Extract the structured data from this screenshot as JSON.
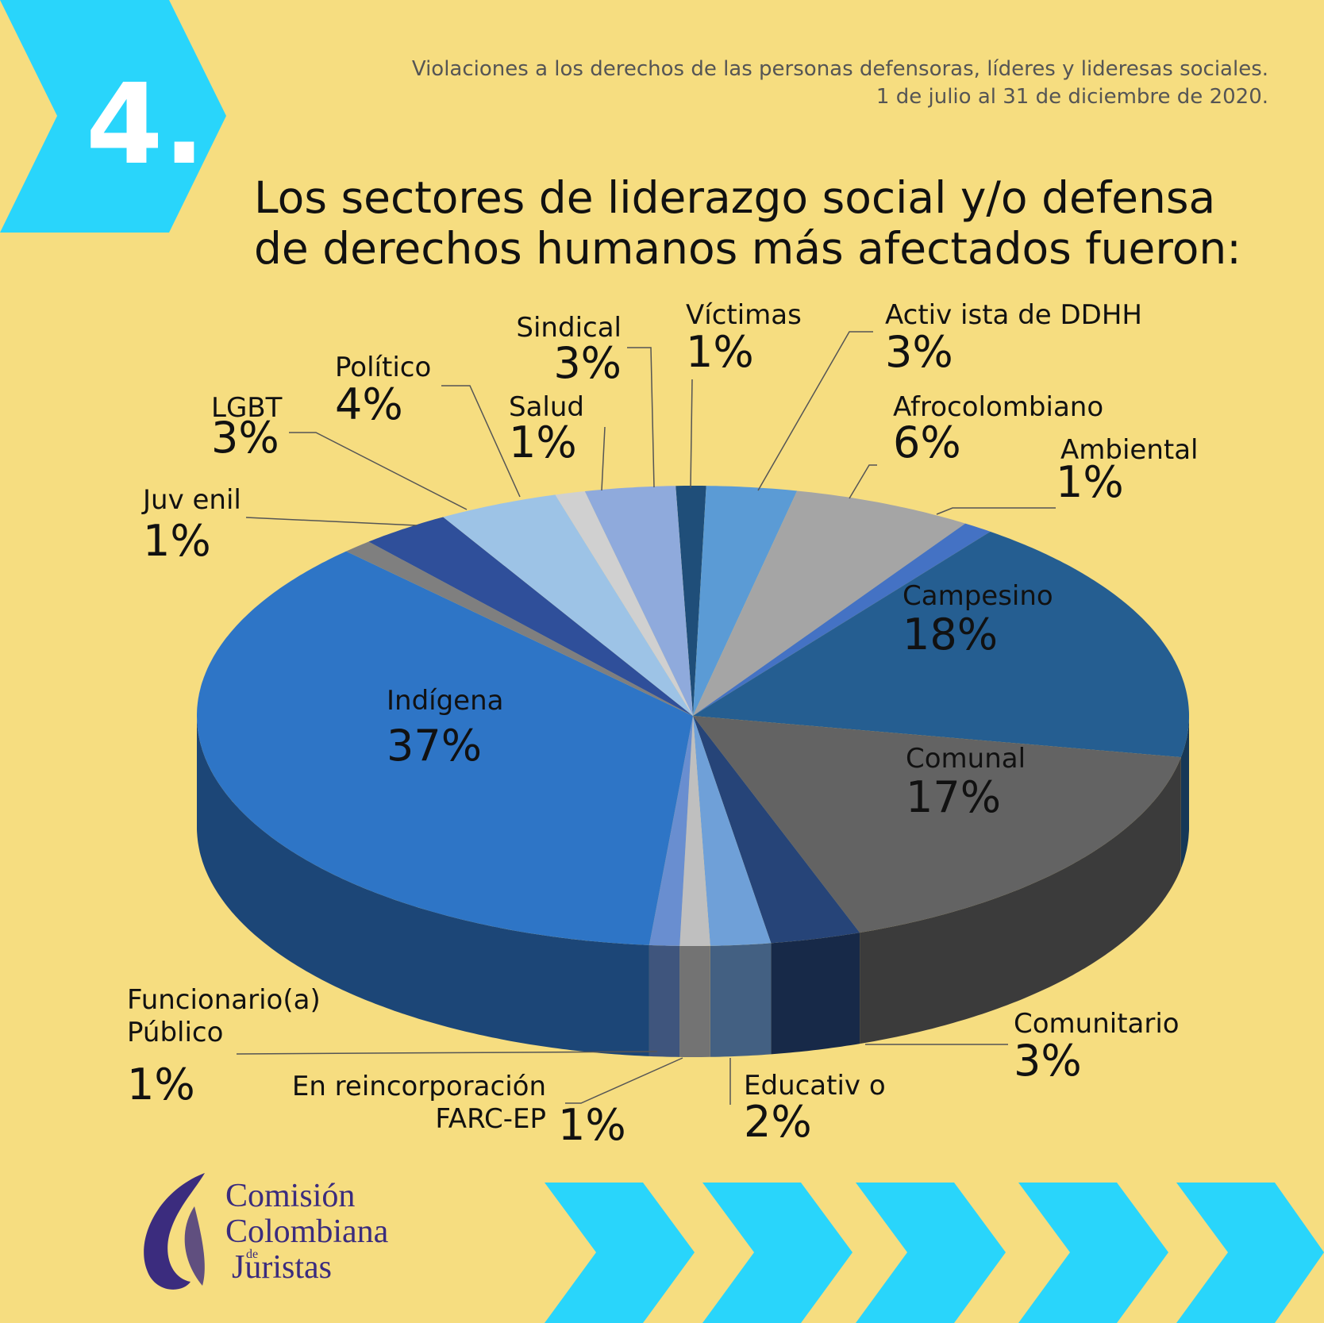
{
  "badge": "4.",
  "subtitle": [
    "Violaciones a los derechos de las personas defensoras, líderes y lideresas sociales.",
    "1 de julio al 31 de diciembre de 2020."
  ],
  "logo": {
    "line1": "Comisión",
    "line2": "Colombiana",
    "small": "de",
    "line3": "Juristas"
  },
  "chart_data": {
    "type": "pie",
    "title": [
      "Los sectores de liderazgo social y/o defensa",
      "de derechos humanos  más afectados fueron:"
    ],
    "categories": [
      "Víctimas",
      "Activ ista de DDHH",
      "Afrocolombiano",
      "Ambiental",
      "Campesino",
      "Comunal",
      "Comunitario",
      "Educativ o",
      "En reincorporación\nFARC-EP",
      "Funcionario(a)\nPúblico",
      "Indígena",
      "Juv enil",
      "LGBT",
      "Político",
      "Salud",
      "Sindical"
    ],
    "values": [
      1,
      3,
      6,
      1,
      18,
      17,
      3,
      2,
      1,
      1,
      37,
      1,
      3,
      4,
      1,
      3
    ],
    "value_labels": [
      "1%",
      "3%",
      "6%",
      "1%",
      "18%",
      "17%",
      "3%",
      "2%",
      "1%",
      "1%",
      "37%",
      "1%",
      "3%",
      "4%",
      "1%",
      "3%"
    ],
    "colors": [
      "#1f4e79",
      "#5b9bd5",
      "#a5a5a5",
      "#4472c4",
      "#255e91",
      "#636363",
      "#264478",
      "#6fa0d8",
      "#bfbfbf",
      "#698ed0",
      "#2e75c6",
      "#7f7f7f",
      "#2f4f9a",
      "#9dc3e6",
      "#d0d0d0",
      "#8faadc"
    ]
  }
}
